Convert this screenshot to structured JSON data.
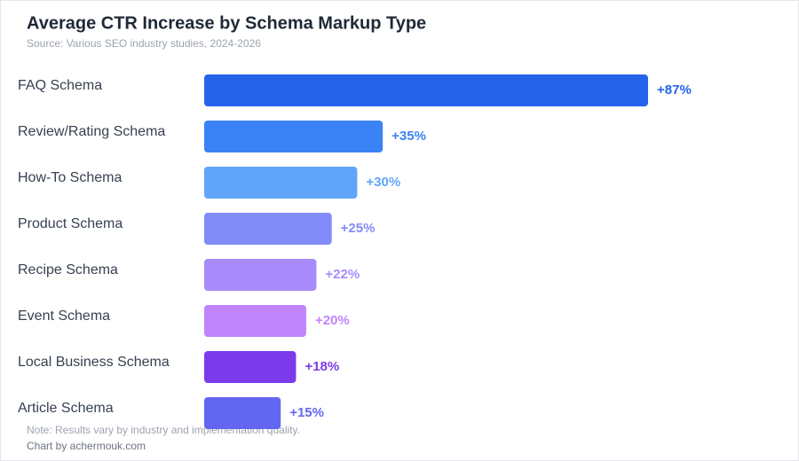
{
  "chart_data": {
    "type": "bar",
    "orientation": "horizontal",
    "title": "Average CTR Increase by Schema Markup Type",
    "subtitle": "Source: Various SEO industry studies, 2024-2026",
    "categories": [
      "FAQ Schema",
      "Review/Rating Schema",
      "How-To Schema",
      "Product Schema",
      "Recipe Schema",
      "Event Schema",
      "Local Business Schema",
      "Article Schema"
    ],
    "values": [
      87,
      35,
      30,
      25,
      22,
      20,
      18,
      15
    ],
    "value_labels": [
      "+87%",
      "+35%",
      "+30%",
      "+25%",
      "+22%",
      "+20%",
      "+18%",
      "+15%"
    ],
    "colors": [
      "#2563eb",
      "#3b82f6",
      "#60a5fa",
      "#818cf8",
      "#a78bfa",
      "#c084fc",
      "#7c3aed",
      "#6366f1"
    ],
    "note": "Note: Results vary by industry and implementation quality.",
    "credit": "Chart by achermouk.com"
  }
}
